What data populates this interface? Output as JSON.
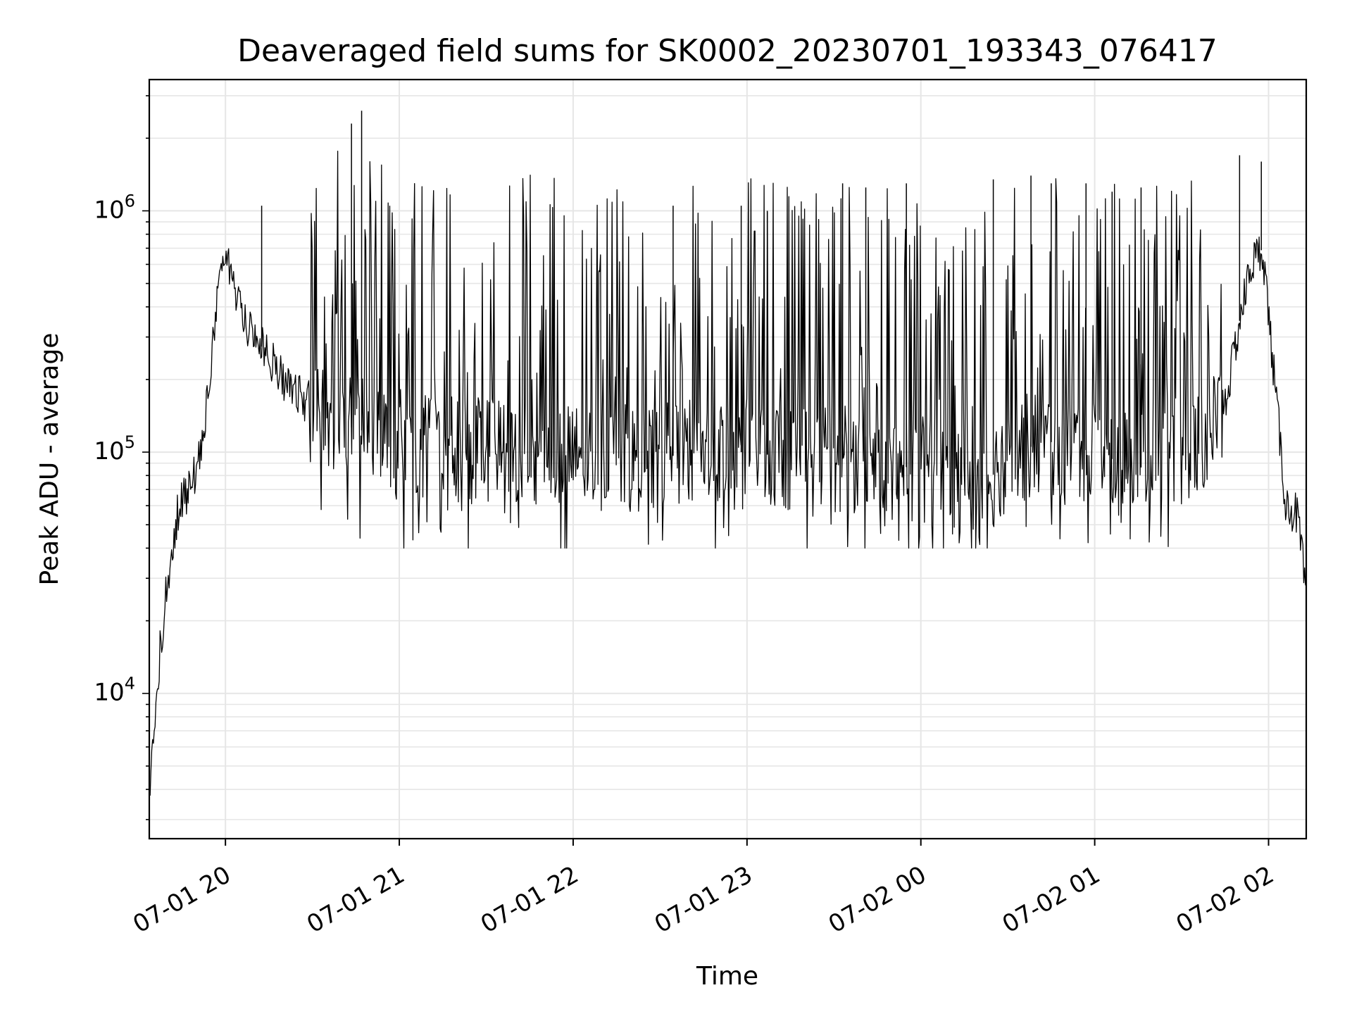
{
  "chart_data": {
    "type": "line",
    "title": "Deaveraged field sums for SK0002_20230701_193343_076417",
    "xlabel": "Time",
    "ylabel": "Peak ADU - average",
    "yscale": "log",
    "xlim": [
      "2023-07-01 19:33:43",
      "2023-07-02 02:13:00"
    ],
    "ylim": [
      2500,
      3500000
    ],
    "grid": true,
    "x_tick_labels": [
      "07-01 20",
      "07-01 21",
      "07-01 22",
      "07-01 23",
      "07-02 00",
      "07-02 01",
      "07-02 02"
    ],
    "x_ticks": [
      "2023-07-01 20:00",
      "2023-07-01 21:00",
      "2023-07-01 22:00",
      "2023-07-01 23:00",
      "2023-07-02 00:00",
      "2023-07-02 01:00",
      "2023-07-02 02:00"
    ],
    "y_tick_labels": [
      {
        "base": "10",
        "exp": "4",
        "value": 10000
      },
      {
        "base": "10",
        "exp": "5",
        "value": 100000
      },
      {
        "base": "10",
        "exp": "6",
        "value": 1000000
      }
    ],
    "line_color": "#000000",
    "grid_color": "#e6e6e6",
    "series": [
      {
        "x": [
          "2023-07-01 19:33:43",
          "2023-07-01 19:36",
          "2023-07-01 19:40",
          "2023-07-01 19:44",
          "2023-07-01 19:48",
          "2023-07-01 19:52",
          "2023-07-01 19:56",
          "2023-07-01 19:59",
          "2023-07-01 20:03",
          "2023-07-01 20:07",
          "2023-07-01 20:10",
          "2023-07-01 20:15",
          "2023-07-01 20:20",
          "2023-07-01 20:25",
          "2023-07-01 20:30",
          "2023-07-01 20:35",
          "2023-07-01 20:40",
          "2023-07-01 20:45",
          "2023-07-01 20:50",
          "2023-07-01 21:00",
          "2023-07-01 21:15",
          "2023-07-01 21:30",
          "2023-07-01 21:45",
          "2023-07-01 22:00",
          "2023-07-01 22:15",
          "2023-07-01 22:30",
          "2023-07-01 22:45",
          "2023-07-01 23:00",
          "2023-07-01 23:15",
          "2023-07-01 23:30",
          "2023-07-01 23:45",
          "2023-07-02 00:00",
          "2023-07-02 00:10",
          "2023-07-02 00:20",
          "2023-07-02 00:30",
          "2023-07-02 00:45",
          "2023-07-02 01:00",
          "2023-07-02 01:15",
          "2023-07-02 01:25",
          "2023-07-02 01:32",
          "2023-07-02 01:40",
          "2023-07-02 01:46",
          "2023-07-02 01:50",
          "2023-07-02 01:54",
          "2023-07-02 01:58",
          "2023-07-02 02:02",
          "2023-07-02 02:06",
          "2023-07-02 02:10",
          "2023-07-02 02:13"
        ],
        "y": [
          3500,
          10000,
          30000,
          60000,
          70000,
          110000,
          300000,
          700000,
          500000,
          350000,
          300000,
          250000,
          200000,
          180000,
          150000,
          140000,
          130000,
          125000,
          120000,
          110000,
          105000,
          100000,
          100000,
          95000,
          95000,
          95000,
          100000,
          100000,
          95000,
          95000,
          90000,
          85000,
          75000,
          65000,
          100000,
          110000,
          100000,
          85000,
          100000,
          100000,
          120000,
          180000,
          350000,
          600000,
          700000,
          200000,
          60000,
          55000,
          25000
        ]
      }
    ],
    "spikes": [
      {
        "x": "2023-07-01 20:43:30",
        "y": 2300000
      },
      {
        "x": "2023-07-01 20:47:00",
        "y": 2600000
      },
      {
        "x": "2023-07-01 20:12:30",
        "y": 1050000
      },
      {
        "x": "2023-07-01 22:34:30",
        "y": 1050000
      },
      {
        "x": "2023-07-01 22:58:00",
        "y": 1050000
      },
      {
        "x": "2023-07-01 23:07:00",
        "y": 1000000
      },
      {
        "x": "2023-07-01 23:33:00",
        "y": 1300000
      },
      {
        "x": "2023-07-01 23:41:00",
        "y": 1250000
      },
      {
        "x": "2023-07-01 23:55:00",
        "y": 1300000
      },
      {
        "x": "2023-07-02 00:25:00",
        "y": 1350000
      },
      {
        "x": "2023-07-02 00:38:00",
        "y": 1400000
      },
      {
        "x": "2023-07-02 00:45:00",
        "y": 1300000
      },
      {
        "x": "2023-07-02 00:57:00",
        "y": 1300000
      },
      {
        "x": "2023-07-02 01:06:00",
        "y": 1200000
      },
      {
        "x": "2023-07-02 01:16:00",
        "y": 1250000
      },
      {
        "x": "2023-07-02 01:50:00",
        "y": 1700000
      },
      {
        "x": "2023-07-02 01:57:30",
        "y": 1600000
      }
    ],
    "noise_floor": 40000
  }
}
